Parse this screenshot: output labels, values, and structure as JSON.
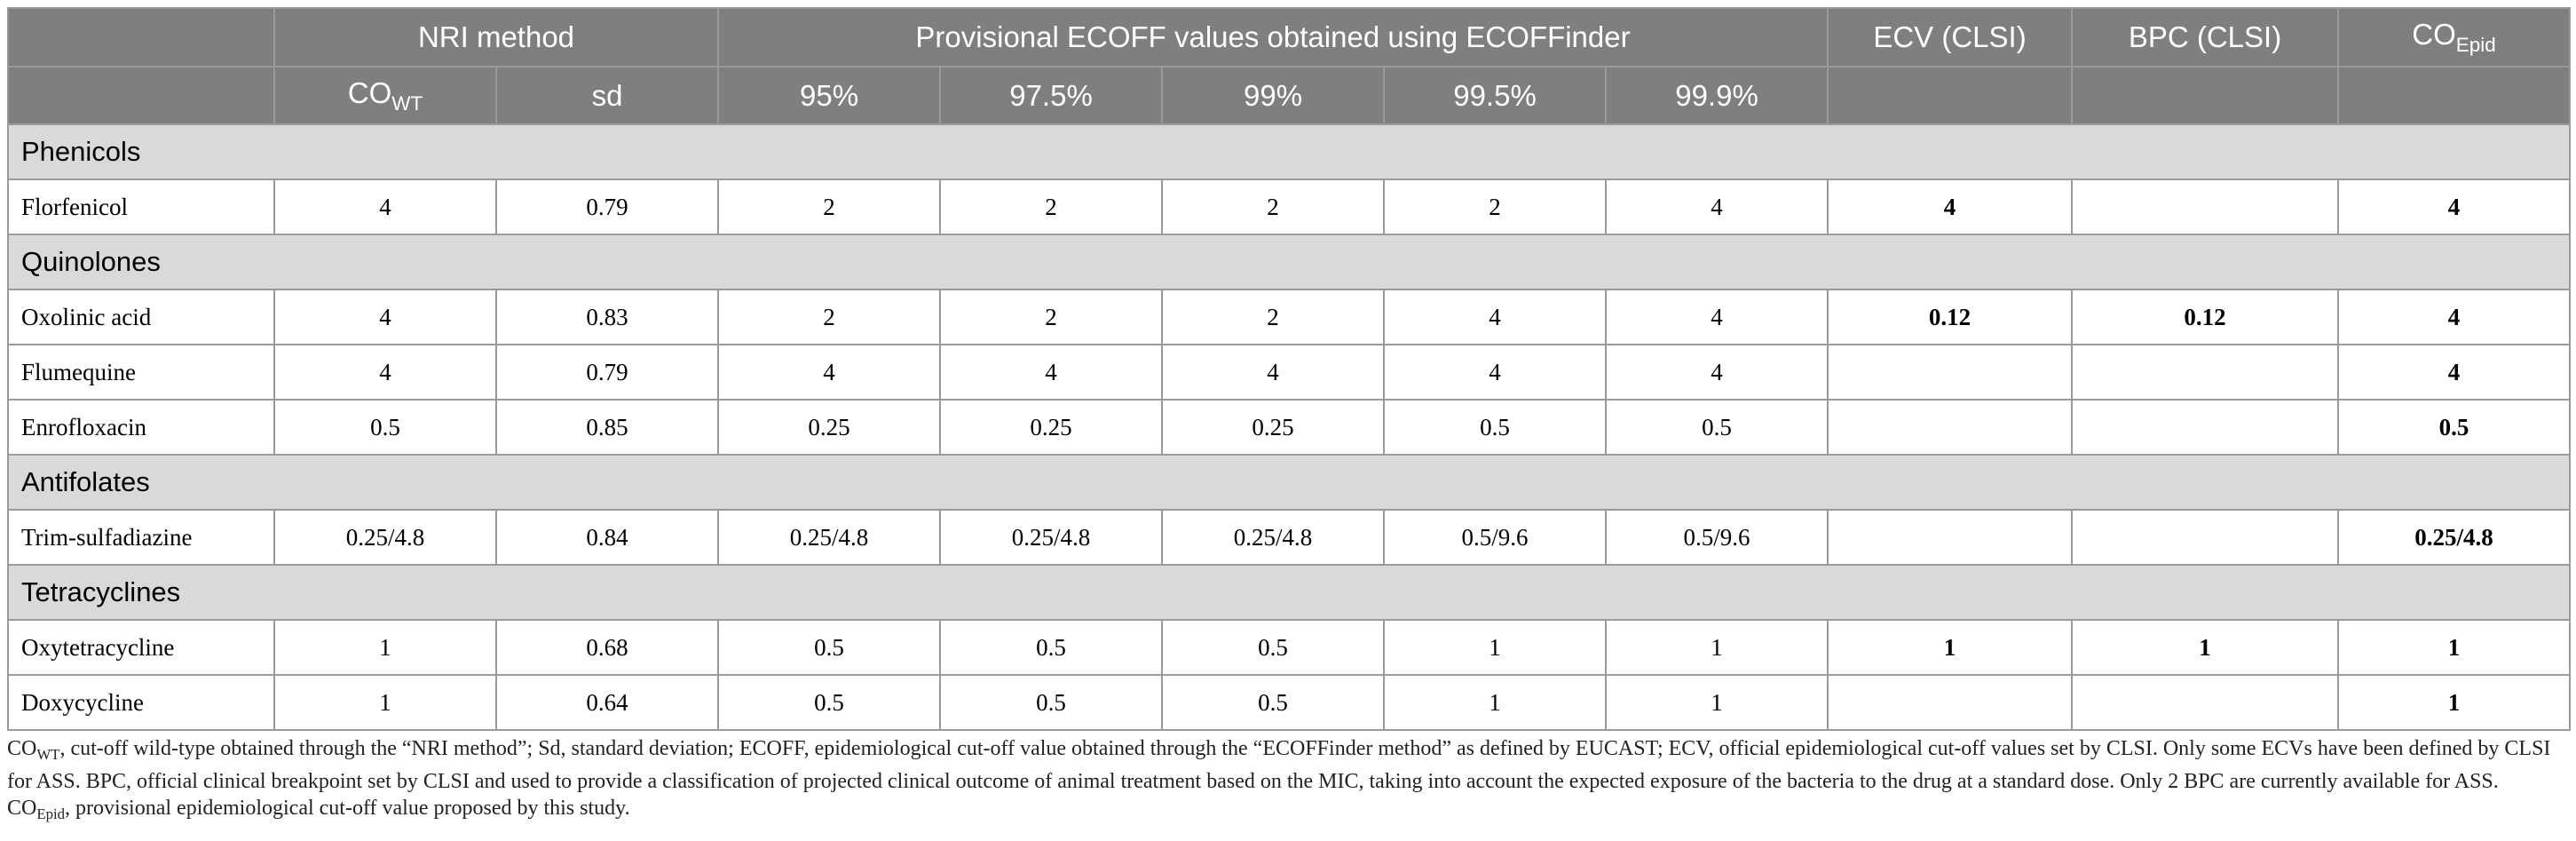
{
  "header": {
    "groups": [
      "NRI method",
      "Provisional ECOFF values obtained using ECOFFinder",
      "ECV (CLSI)",
      "BPC (CLSI)"
    ],
    "co_epid": {
      "base": "CO",
      "sub": "Epid"
    },
    "nri_cols": {
      "co_wt_base": "CO",
      "co_wt_sub": "WT",
      "sd": "sd"
    },
    "ecoff_cols": [
      "95%",
      "97.5%",
      "99%",
      "99.5%",
      "99.9%"
    ]
  },
  "sections": [
    {
      "label": "Phenicols",
      "rows": [
        {
          "drug": "Florfenicol",
          "cells": [
            "4",
            "0.79",
            "2",
            "2",
            "2",
            "2",
            "4",
            "4",
            "",
            "4"
          ]
        }
      ]
    },
    {
      "label": "Quinolones",
      "rows": [
        {
          "drug": "Oxolinic acid",
          "cells": [
            "4",
            "0.83",
            "2",
            "2",
            "2",
            "4",
            "4",
            "0.12",
            "0.12",
            "4"
          ]
        },
        {
          "drug": "Flumequine",
          "cells": [
            "4",
            "0.79",
            "4",
            "4",
            "4",
            "4",
            "4",
            "",
            "",
            "4"
          ]
        },
        {
          "drug": "Enrofloxacin",
          "cells": [
            "0.5",
            "0.85",
            "0.25",
            "0.25",
            "0.25",
            "0.5",
            "0.5",
            "",
            "",
            "0.5"
          ]
        }
      ]
    },
    {
      "label": "Antifolates",
      "rows": [
        {
          "drug": "Trim-sulfadiazine",
          "cells": [
            "0.25/4.8",
            "0.84",
            "0.25/4.8",
            "0.25/4.8",
            "0.25/4.8",
            "0.5/9.6",
            "0.5/9.6",
            "",
            "",
            "0.25/4.8"
          ]
        }
      ]
    },
    {
      "label": "Tetracyclines",
      "rows": [
        {
          "drug": "Oxytetracycline",
          "cells": [
            "1",
            "0.68",
            "0.5",
            "0.5",
            "0.5",
            "1",
            "1",
            "1",
            "1",
            "1"
          ]
        },
        {
          "drug": "Doxycycline",
          "cells": [
            "1",
            "0.64",
            "0.5",
            "0.5",
            "0.5",
            "1",
            "1",
            "",
            "",
            "1"
          ]
        }
      ]
    }
  ],
  "footnote": {
    "p1_base": "CO",
    "p1_sub": "WT",
    "p1_text": ", cut-off wild-type obtained through the “NRI method”; Sd, standard deviation; ECOFF, epidemiological cut-off value obtained through the “ECOFFinder method” as defined by EUCAST; ECV, official epidemiological cut-off values set by CLSI. Only some ECVs have been defined by CLSI for ASS. BPC, official clinical breakpoint set by CLSI and used to provide a classification of projected clinical outcome of animal treatment based on the MIC, taking into account the expected exposure of the bacteria to the drug at a standard dose. Only 2 BPC are currently available for ASS. ",
    "p2_base": "CO",
    "p2_sub": "Epid",
    "p2_text": ", provisional epidemiological cut-off value proposed by this study."
  }
}
